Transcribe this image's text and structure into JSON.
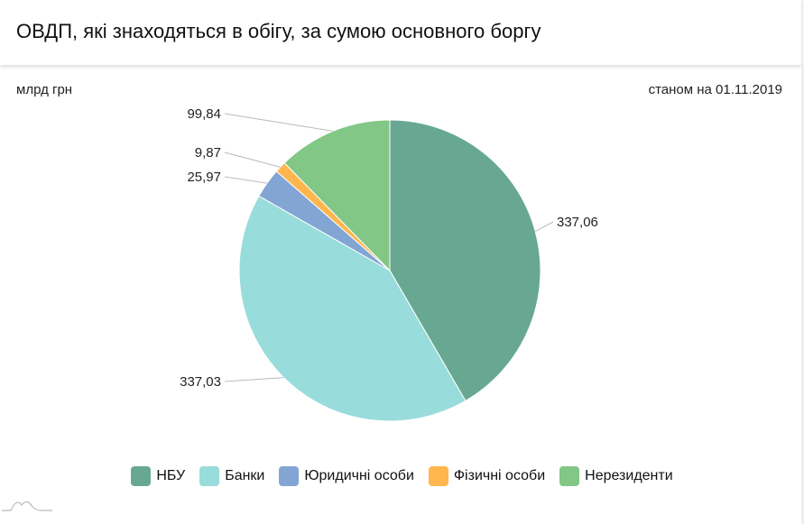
{
  "header": {
    "title": "ОВДП, які знаходяться в обігу, за сумою основного боргу"
  },
  "unit": "млрд грн",
  "date_label": "станом на 01.11.2019",
  "chart_data": {
    "type": "pie",
    "title": "ОВДП, які знаходяться в обігу, за сумою основного боргу",
    "categories": [
      "НБУ",
      "Банки",
      "Юридичні особи",
      "Фізичні особи",
      "Нерезиденти"
    ],
    "values": [
      337.06,
      337.03,
      25.97,
      9.87,
      99.84
    ],
    "labels": [
      "337,06",
      "337,03",
      "25,97",
      "9,87",
      "99,84"
    ],
    "colors": [
      "#68a893",
      "#98dcdb",
      "#82a5d4",
      "#ffb74d",
      "#82c785"
    ],
    "legend_position": "bottom",
    "start_angle": "top, clockwise"
  }
}
